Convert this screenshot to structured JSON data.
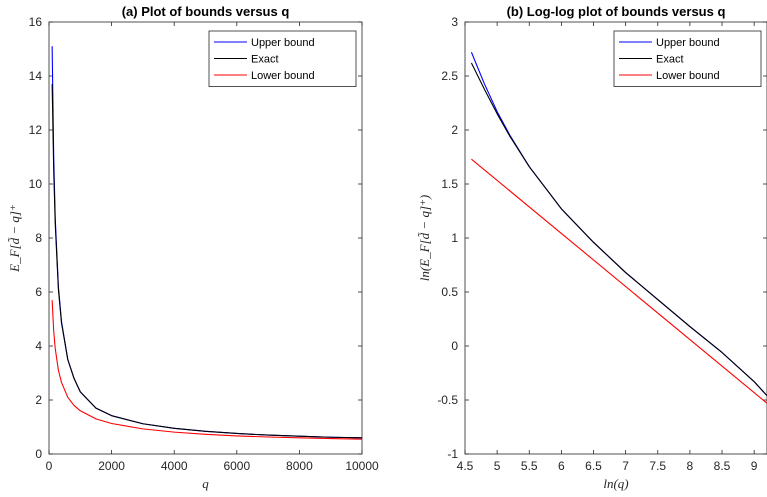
{
  "chart_data": [
    {
      "type": "line",
      "title": "(a) Plot of bounds versus q",
      "xlabel": "q",
      "ylabel": "E_F[d̃ − q]⁺",
      "xlim": [
        0,
        10000
      ],
      "ylim": [
        0,
        16
      ],
      "xticks": [
        0,
        2000,
        4000,
        6000,
        8000,
        10000
      ],
      "xtick_labels": [
        "0",
        "2000",
        "4000",
        "6000",
        "8000",
        "10000"
      ],
      "yticks": [
        0,
        2,
        4,
        6,
        8,
        10,
        12,
        14,
        16
      ],
      "ytick_labels": [
        "0",
        "2",
        "4",
        "6",
        "8",
        "10",
        "12",
        "14",
        "16"
      ],
      "grid": false,
      "legend_position": "top-right",
      "series": [
        {
          "name": "Upper bound",
          "color": "#0000ff",
          "x": [
            100,
            150,
            200,
            300,
            400,
            600,
            800,
            1000,
            1500,
            2000,
            3000,
            4000,
            5000,
            6000,
            7000,
            8000,
            9000,
            10000
          ],
          "y": [
            15.1,
            11.0,
            8.7,
            6.2,
            4.9,
            3.5,
            2.8,
            2.3,
            1.7,
            1.42,
            1.12,
            0.95,
            0.84,
            0.76,
            0.7,
            0.66,
            0.62,
            0.6
          ]
        },
        {
          "name": "Exact",
          "color": "#000000",
          "x": [
            100,
            150,
            200,
            300,
            400,
            600,
            800,
            1000,
            1500,
            2000,
            3000,
            4000,
            5000,
            6000,
            7000,
            8000,
            9000,
            10000
          ],
          "y": [
            13.7,
            10.5,
            8.5,
            6.1,
            4.85,
            3.5,
            2.8,
            2.3,
            1.7,
            1.42,
            1.12,
            0.95,
            0.84,
            0.76,
            0.7,
            0.66,
            0.62,
            0.6
          ]
        },
        {
          "name": "Lower bound",
          "color": "#ff0000",
          "x": [
            100,
            150,
            200,
            300,
            400,
            600,
            800,
            1000,
            1500,
            2000,
            3000,
            4000,
            5000,
            6000,
            7000,
            8000,
            9000,
            10000
          ],
          "y": [
            5.7,
            4.55,
            3.9,
            3.1,
            2.65,
            2.1,
            1.8,
            1.6,
            1.3,
            1.13,
            0.93,
            0.81,
            0.73,
            0.67,
            0.63,
            0.6,
            0.57,
            0.55
          ]
        }
      ]
    },
    {
      "type": "line",
      "title": "(b) Log-log plot of bounds versus q",
      "xlabel": "ln(q)",
      "ylabel": "ln(E_F[d̃ − q]⁺)",
      "xlim": [
        4.5,
        9.2
      ],
      "ylim": [
        -1,
        3
      ],
      "xticks": [
        4.5,
        5,
        5.5,
        6,
        6.5,
        7,
        7.5,
        8,
        8.5,
        9
      ],
      "xtick_labels": [
        "4.5",
        "5",
        "5.5",
        "6",
        "6.5",
        "7",
        "7.5",
        "8",
        "8.5",
        "9"
      ],
      "yticks": [
        -1,
        -0.5,
        0,
        0.5,
        1,
        1.5,
        2,
        2.5,
        3
      ],
      "ytick_labels": [
        "-1",
        "-0.5",
        "0",
        "0.5",
        "1",
        "1.5",
        "2",
        "2.5",
        "3"
      ],
      "grid": false,
      "legend_position": "top-right",
      "series": [
        {
          "name": "Upper bound",
          "color": "#0000ff",
          "x": [
            4.6,
            4.8,
            5.0,
            5.2,
            5.5,
            6.0,
            6.5,
            7.0,
            7.5,
            8.0,
            8.5,
            9.0,
            9.2
          ],
          "y": [
            2.72,
            2.43,
            2.17,
            1.95,
            1.66,
            1.27,
            0.96,
            0.68,
            0.43,
            0.18,
            -0.06,
            -0.33,
            -0.46
          ]
        },
        {
          "name": "Exact",
          "color": "#000000",
          "x": [
            4.6,
            4.8,
            5.0,
            5.2,
            5.5,
            6.0,
            6.5,
            7.0,
            7.5,
            8.0,
            8.5,
            9.0,
            9.2
          ],
          "y": [
            2.62,
            2.38,
            2.15,
            1.94,
            1.66,
            1.27,
            0.96,
            0.68,
            0.43,
            0.18,
            -0.06,
            -0.33,
            -0.46
          ]
        },
        {
          "name": "Lower bound",
          "color": "#ff0000",
          "x": [
            4.6,
            9.2
          ],
          "y": [
            1.73,
            -0.53
          ]
        }
      ]
    }
  ]
}
